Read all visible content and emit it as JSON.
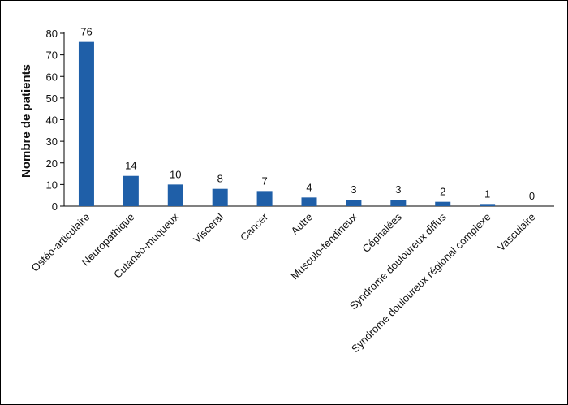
{
  "chart_data": {
    "type": "bar",
    "title": "",
    "xlabel": "",
    "ylabel": "Nombre de patients",
    "ylim": [
      0,
      80
    ],
    "yticks": [
      0,
      10,
      20,
      30,
      40,
      50,
      60,
      70,
      80
    ],
    "grid": false,
    "legend": "none",
    "bar_color": "#1f5fa8",
    "categories": [
      "Ostéo-articulaire",
      "Neuropathique",
      "Cutanéo-muqueux",
      "Viscéral",
      "Cancer",
      "Autre",
      "Musculo-tendineux",
      "Céphalées",
      "Syndrome douloureux diffus",
      "Syndrome douloureux régional complexe",
      "Vasculaire"
    ],
    "values": [
      76,
      14,
      10,
      8,
      7,
      4,
      3,
      3,
      2,
      1,
      0
    ]
  }
}
